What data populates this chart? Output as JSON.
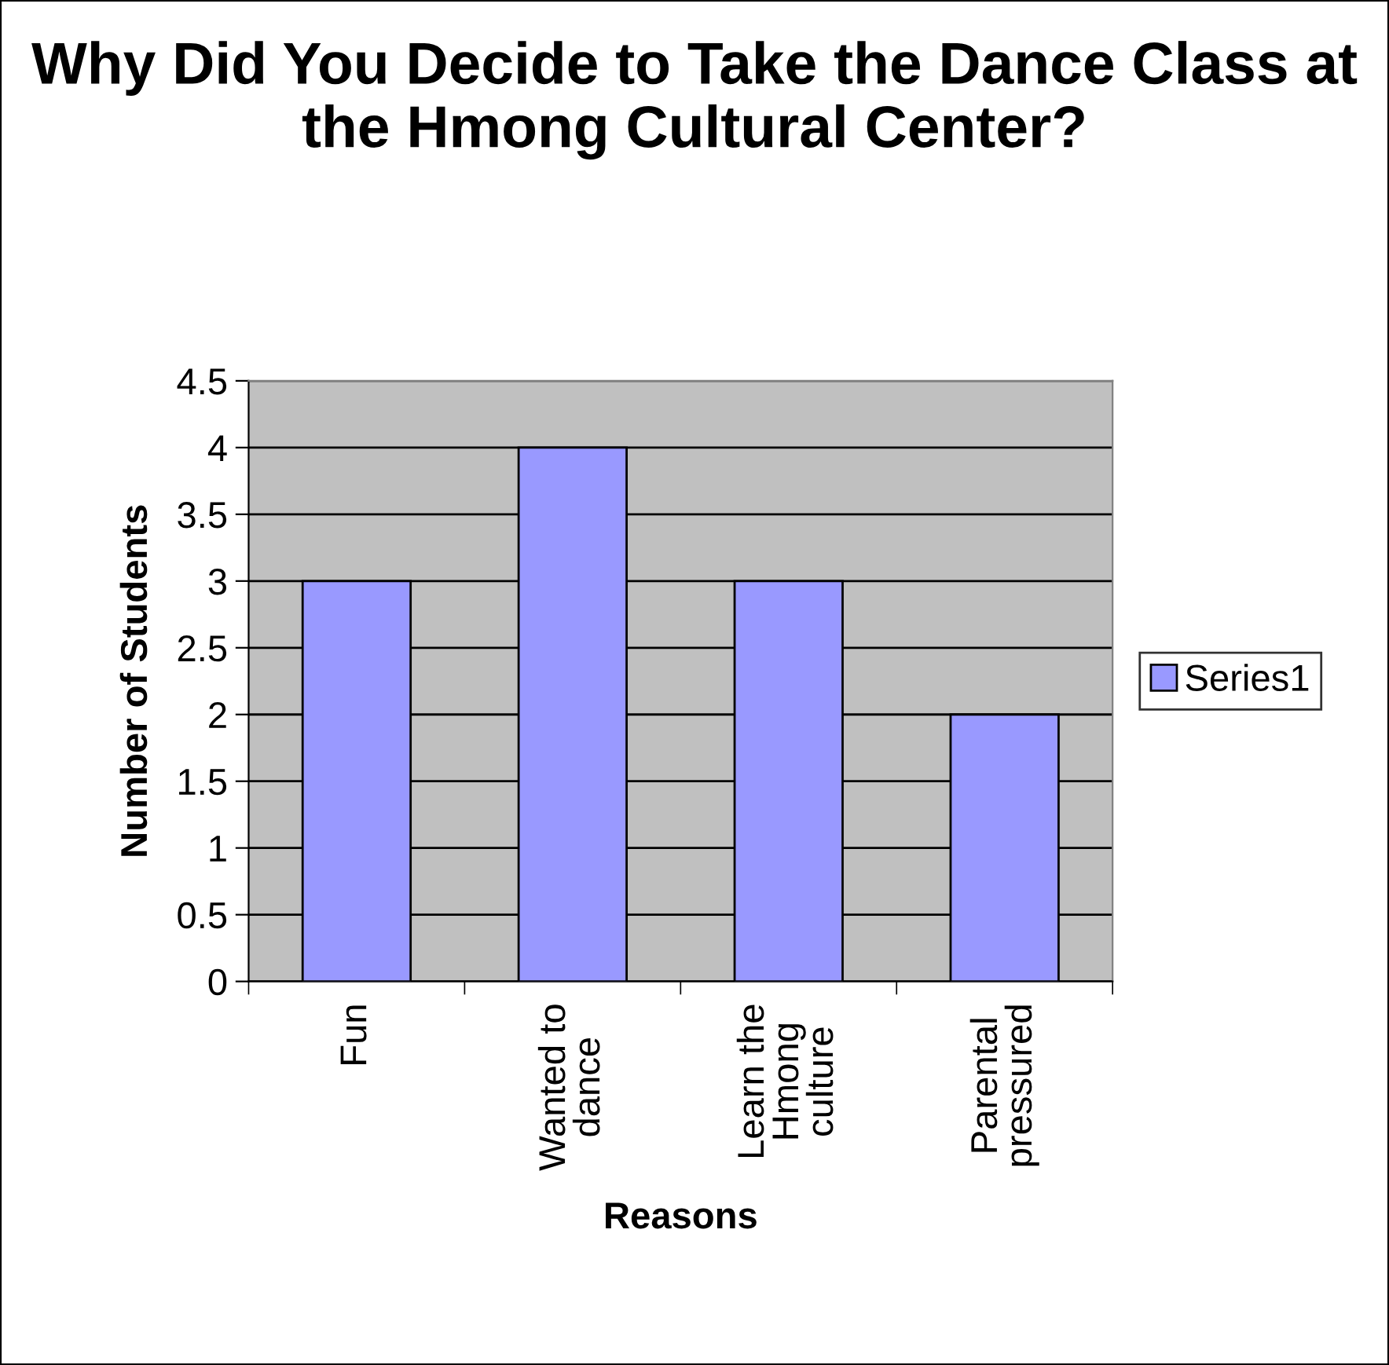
{
  "chart_data": {
    "type": "bar",
    "title": "Why Did You Decide to Take the Dance Class at the Hmong Cultural Center?",
    "xlabel": "Reasons",
    "ylabel": "Number of Students",
    "categories": [
      "Fun",
      "Wanted to\ndance",
      "Learn the\nHmong\nculture",
      "Parental\npressured"
    ],
    "series": [
      {
        "name": "Series1",
        "color": "#9999ff",
        "values": [
          3,
          4,
          3,
          2
        ]
      }
    ],
    "ylim": [
      0,
      4.5
    ],
    "yticks": [
      0,
      0.5,
      1,
      1.5,
      2,
      2.5,
      3,
      3.5,
      4,
      4.5
    ],
    "grid": "y",
    "legend": "right"
  }
}
